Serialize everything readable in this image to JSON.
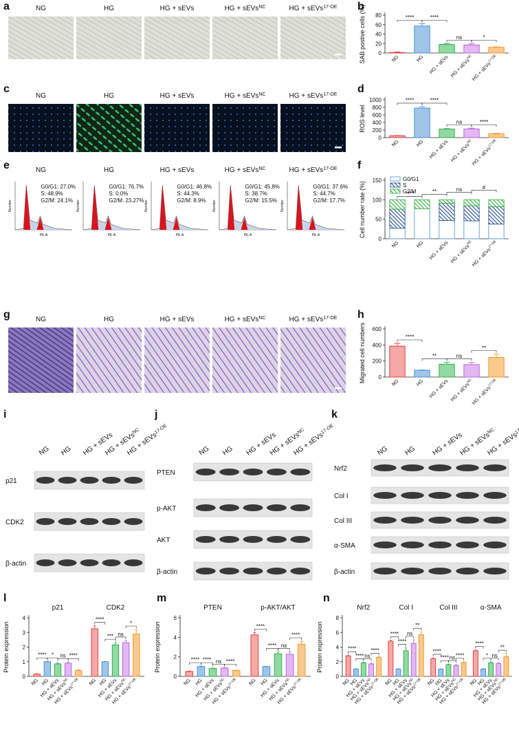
{
  "panels": [
    "a",
    "b",
    "c",
    "d",
    "e",
    "f",
    "g",
    "h",
    "i",
    "j",
    "k",
    "l",
    "m",
    "n"
  ],
  "groups": [
    {
      "text": "NG"
    },
    {
      "text": "HG"
    },
    {
      "text": "HG + sEVs"
    },
    {
      "text": "HG + sEVs",
      "sup": "NC"
    },
    {
      "text": "HG + sEVs",
      "sup": "17-OE"
    }
  ],
  "flow": {
    "x_label": "PE-A",
    "y_label": "Number",
    "stats": [
      [
        "G0/G1: 27.0%",
        "S: 48.9%",
        "G2/M: 24.1%"
      ],
      [
        "G0/G1: 76.7%",
        "S: 0.0%",
        "G2/M: 23.27%"
      ],
      [
        "G0/G1: 46.8%",
        "S: 44.3%",
        "G2/M: 8.9%"
      ],
      [
        "G0/G1: 45.8%",
        "S: 38.7%",
        "G2/M: 15.5%"
      ],
      [
        "G0/G1: 37.6%",
        "S: 44.7%",
        "G2/M: 17.7%"
      ]
    ]
  },
  "blots": [
    {
      "rows": [
        "p21",
        "CDK2",
        "β-actin"
      ]
    },
    {
      "rows": [
        "PTEN",
        "p-AKT",
        "AKT",
        "β-actin"
      ]
    },
    {
      "rows": [
        "Nrf2",
        "Col I",
        "Col III",
        "α-SMA",
        "β-actin"
      ]
    }
  ],
  "chart_data": [
    {
      "type": "bar",
      "ylabel": "SAB postive cells (%)",
      "categories": [
        {
          "text": "NG"
        },
        {
          "text": "HG"
        },
        {
          "text": "HG + sEVs"
        },
        {
          "text": "HG + sEVs",
          "sup": "NC"
        },
        {
          "text": "HG + sEVs",
          "sup": "17-OE"
        }
      ],
      "values": [
        1,
        57,
        18,
        17,
        12
      ],
      "errors": [
        1,
        5,
        2,
        3,
        1
      ],
      "colors": [
        "#f4a9a8",
        "#9fc5e8",
        "#93d9a3",
        "#e3b8f2",
        "#f9c98f"
      ],
      "edge_colors": [
        "#e0403f",
        "#4a90d9",
        "#2fae4e",
        "#b565d8",
        "#f09a2c"
      ],
      "ylim": [
        0,
        80
      ],
      "yticks": [
        0,
        20,
        40,
        60,
        80
      ],
      "annotations": [
        "****",
        "****",
        "ns",
        "*"
      ]
    },
    {
      "type": "bar",
      "ylabel": "ROS level",
      "categories": [
        {
          "text": "NG"
        },
        {
          "text": "HG"
        },
        {
          "text": "HG + sEVs"
        },
        {
          "text": "HG + sEVs",
          "sup": "NC"
        },
        {
          "text": "HG + sEVs",
          "sup": "17-OE"
        }
      ],
      "values": [
        50,
        780,
        225,
        230,
        100
      ],
      "errors": [
        5,
        40,
        15,
        20,
        15
      ],
      "colors": [
        "#f4a9a8",
        "#9fc5e8",
        "#93d9a3",
        "#e3b8f2",
        "#f9c98f"
      ],
      "edge_colors": [
        "#e0403f",
        "#4a90d9",
        "#2fae4e",
        "#b565d8",
        "#f09a2c"
      ],
      "ylim": [
        0,
        1000
      ],
      "yticks": [
        0,
        200,
        400,
        600,
        800,
        1000
      ],
      "annotations": [
        "****",
        "****",
        "ns",
        "****"
      ]
    },
    {
      "type": "stacked_bar",
      "ylabel": "Cell number rate (%)",
      "categories": [
        {
          "text": "NG"
        },
        {
          "text": "HG"
        },
        {
          "text": "HG + sEVs"
        },
        {
          "text": "HG + sEVs",
          "sup": "NC"
        },
        {
          "text": "HG + sEVs",
          "sup": "17-OE"
        }
      ],
      "series": [
        {
          "name": "G0/G1",
          "color": "#5b9bd5",
          "values": [
            27.0,
            76.7,
            46.8,
            45.8,
            37.6
          ]
        },
        {
          "name": "S",
          "color": "#2f5597",
          "values": [
            48.9,
            0.0,
            44.3,
            38.7,
            44.7
          ]
        },
        {
          "name": "G2/M",
          "color": "#3cb44b",
          "values": [
            24.1,
            23.27,
            8.9,
            15.5,
            17.7
          ]
        }
      ],
      "ylim": [
        0,
        150
      ],
      "yticks": [
        0,
        50,
        100,
        150
      ],
      "annotations": [
        "****",
        "**",
        "ns",
        "#"
      ]
    },
    {
      "type": "bar",
      "ylabel": "Migrated cell numbers",
      "categories": [
        {
          "text": "NG"
        },
        {
          "text": "HG"
        },
        {
          "text": "HG + sEVs"
        },
        {
          "text": "HG + sEVs",
          "sup": "NC"
        },
        {
          "text": "HG + sEVs",
          "sup": "17-OE"
        }
      ],
      "values": [
        385,
        85,
        160,
        155,
        245
      ],
      "errors": [
        35,
        3,
        25,
        25,
        40
      ],
      "colors": [
        "#f4a9a8",
        "#9fc5e8",
        "#93d9a3",
        "#e3b8f2",
        "#f9c98f"
      ],
      "edge_colors": [
        "#e0403f",
        "#4a90d9",
        "#2fae4e",
        "#b565d8",
        "#f09a2c"
      ],
      "ylim": [
        0,
        600
      ],
      "yticks": [
        0,
        200,
        400,
        600
      ],
      "annotations": [
        "****",
        "**",
        "ns",
        "**"
      ]
    },
    {
      "type": "grouped_bar",
      "ylabel": "Protein expression",
      "categories": [
        {
          "text": "NG"
        },
        {
          "text": "HG"
        },
        {
          "text": "HG + sEVs"
        },
        {
          "text": "HG + sEVs",
          "sup": "NC"
        },
        {
          "text": "HG + sEVs",
          "sup": "17-OE"
        }
      ],
      "colors": [
        "#f4a9a8",
        "#9fc5e8",
        "#93d9a3",
        "#e3b8f2",
        "#f9c98f"
      ],
      "edge_colors": [
        "#e0403f",
        "#4a90d9",
        "#2fae4e",
        "#b565d8",
        "#f09a2c"
      ],
      "ylim": [
        0,
        4
      ],
      "yticks": [
        0,
        1,
        2,
        3,
        4
      ],
      "panels": [
        {
          "title": "p21",
          "values": [
            0.15,
            1.0,
            0.85,
            0.9,
            0.4
          ],
          "errors": [
            0.03,
            0.03,
            0.05,
            0.08,
            0.06
          ],
          "annotations": [
            "****",
            "*",
            "ns",
            "****"
          ]
        },
        {
          "title": "CDK2",
          "values": [
            3.25,
            1.0,
            2.15,
            2.3,
            2.9
          ],
          "errors": [
            0.2,
            0.02,
            0.15,
            0.15,
            0.3
          ],
          "annotations": [
            "****",
            "***",
            "ns",
            "*"
          ]
        }
      ]
    },
    {
      "type": "grouped_bar",
      "ylabel": "Protein expression",
      "categories": [
        {
          "text": "NG"
        },
        {
          "text": "HG"
        },
        {
          "text": "HG + sEVs"
        },
        {
          "text": "HG + sEVs",
          "sup": "NC"
        },
        {
          "text": "HG + sEVs",
          "sup": "17-OE"
        }
      ],
      "colors": [
        "#f4a9a8",
        "#9fc5e8",
        "#93d9a3",
        "#e3b8f2",
        "#f9c98f"
      ],
      "edge_colors": [
        "#e0403f",
        "#4a90d9",
        "#2fae4e",
        "#b565d8",
        "#f09a2c"
      ],
      "ylim": [
        0,
        6
      ],
      "yticks": [
        0,
        2,
        4,
        6
      ],
      "panels": [
        {
          "title": "PTEN",
          "values": [
            0.5,
            1.0,
            0.8,
            0.85,
            0.6
          ],
          "errors": [
            0.05,
            0.05,
            0.05,
            0.05,
            0.05
          ],
          "annotations": [
            "****",
            "****",
            "ns",
            "****"
          ]
        },
        {
          "title": "p-AKT/AKT",
          "values": [
            4.25,
            1.0,
            2.3,
            2.25,
            3.3
          ],
          "errors": [
            0.25,
            0.03,
            0.2,
            0.25,
            0.3
          ],
          "annotations": [
            "****",
            "****",
            "ns",
            "****"
          ]
        }
      ]
    },
    {
      "type": "grouped_bar",
      "ylabel": "Protein expression",
      "categories": [
        {
          "text": "NG"
        },
        {
          "text": "HG"
        },
        {
          "text": "HG + sEVs"
        },
        {
          "text": "HG + sEVs",
          "sup": "NC"
        },
        {
          "text": "HG + sEVs",
          "sup": "17-OE"
        }
      ],
      "colors": [
        "#f4a9a8",
        "#9fc5e8",
        "#93d9a3",
        "#e3b8f2",
        "#f9c98f"
      ],
      "edge_colors": [
        "#e0403f",
        "#4a90d9",
        "#2fae4e",
        "#b565d8",
        "#f09a2c"
      ],
      "ylim": [
        0,
        8
      ],
      "yticks": [
        0,
        2,
        4,
        6,
        8
      ],
      "panels": [
        {
          "title": "Nrf2",
          "values": [
            2.8,
            1.0,
            1.85,
            1.7,
            2.6
          ],
          "errors": [
            0.1,
            0.03,
            0.1,
            0.1,
            0.1
          ],
          "annotations": [
            "****",
            "****",
            "ns",
            "****"
          ]
        },
        {
          "title": "Col I",
          "values": [
            4.8,
            1.0,
            3.5,
            4.5,
            5.7
          ],
          "errors": [
            0.15,
            0.05,
            0.4,
            0.5,
            0.4
          ],
          "annotations": [
            "****",
            "****",
            "ns",
            "**"
          ]
        },
        {
          "title": "Col III",
          "values": [
            2.4,
            1.0,
            1.6,
            1.5,
            1.9
          ],
          "errors": [
            0.15,
            0.03,
            0.08,
            0.08,
            0.1
          ],
          "annotations": [
            "****",
            "****",
            "ns",
            "****"
          ]
        },
        {
          "title": "α-SMA",
          "values": [
            3.5,
            1.0,
            1.85,
            1.75,
            2.7
          ],
          "errors": [
            0.12,
            0.05,
            0.15,
            0.15,
            0.4
          ],
          "annotations": [
            "****",
            "*",
            "ns",
            "**"
          ]
        }
      ]
    }
  ]
}
